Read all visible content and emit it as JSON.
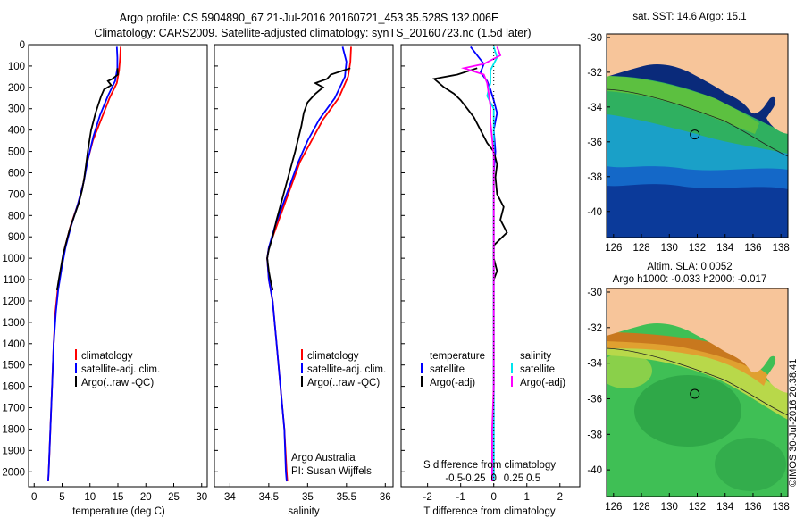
{
  "header": {
    "line1": "Argo profile: CS 5904890_67 21-Jul-2016 20160721_453 35.528S 132.006E",
    "line2": "Climatology: CARS2009. Satellite-adjusted climatology: synTS_20160723.nc (1.5d later)"
  },
  "colors": {
    "climatology": "#ff0000",
    "satellite": "#0000ff",
    "argo": "#000000",
    "satellite_s": "#00e5ee",
    "argo_s": "#ff00ff",
    "land": "#f7c59a"
  },
  "chart_data": [
    {
      "type": "line",
      "name": "temperature-profile",
      "xlabel": "temperature (deg C)",
      "ylabel": "",
      "xlim": [
        -1,
        31
      ],
      "ylim": [
        2070,
        0
      ],
      "xticks": [
        0,
        5,
        10,
        15,
        20,
        25,
        30
      ],
      "yticks": [
        0,
        100,
        200,
        300,
        400,
        500,
        600,
        700,
        800,
        900,
        1000,
        1100,
        1200,
        1300,
        1400,
        1500,
        1600,
        1700,
        1800,
        1900,
        2000
      ],
      "legend": [
        "climatology",
        "satellite-adj. clim.",
        "Argo(..raw -QC)"
      ],
      "series": [
        {
          "name": "climatology",
          "color": "#ff0000",
          "points": [
            [
              15.5,
              10
            ],
            [
              15.4,
              60
            ],
            [
              15.2,
              120
            ],
            [
              14.8,
              180
            ],
            [
              13.5,
              250
            ],
            [
              12.0,
              350
            ],
            [
              10.5,
              450
            ],
            [
              9.5,
              550
            ],
            [
              8.8,
              650
            ],
            [
              7.8,
              750
            ],
            [
              6.5,
              850
            ],
            [
              5.5,
              950
            ],
            [
              4.8,
              1050
            ],
            [
              4.2,
              1150
            ],
            [
              3.8,
              1250
            ],
            [
              3.5,
              1400
            ],
            [
              3.2,
              1600
            ],
            [
              2.9,
              1800
            ],
            [
              2.6,
              2000
            ],
            [
              2.5,
              2045
            ]
          ]
        },
        {
          "name": "satellite-adj. clim.",
          "color": "#0000ff",
          "points": [
            [
              14.8,
              10
            ],
            [
              14.9,
              60
            ],
            [
              14.9,
              110
            ],
            [
              14.5,
              170
            ],
            [
              13.2,
              240
            ],
            [
              11.8,
              330
            ],
            [
              10.6,
              430
            ],
            [
              9.6,
              540
            ],
            [
              8.9,
              640
            ],
            [
              7.9,
              740
            ],
            [
              6.6,
              850
            ],
            [
              5.6,
              950
            ],
            [
              4.9,
              1050
            ],
            [
              4.3,
              1150
            ],
            [
              3.9,
              1250
            ],
            [
              3.5,
              1400
            ],
            [
              3.2,
              1600
            ],
            [
              2.9,
              1800
            ],
            [
              2.6,
              2000
            ],
            [
              2.5,
              2045
            ]
          ]
        },
        {
          "name": "Argo(..raw -QC)",
          "color": "#000000",
          "points": [
            [
              14.9,
              110
            ],
            [
              15.0,
              140
            ],
            [
              14.0,
              160
            ],
            [
              13.2,
              170
            ],
            [
              13.8,
              190
            ],
            [
              12.5,
              210
            ],
            [
              12.0,
              240
            ],
            [
              11.5,
              280
            ],
            [
              11.0,
              320
            ],
            [
              10.6,
              360
            ],
            [
              10.2,
              400
            ],
            [
              9.9,
              450
            ],
            [
              9.6,
              500
            ],
            [
              9.3,
              560
            ],
            [
              9.0,
              620
            ],
            [
              8.6,
              680
            ],
            [
              8.0,
              740
            ],
            [
              7.2,
              800
            ],
            [
              6.4,
              860
            ],
            [
              5.8,
              920
            ],
            [
              5.2,
              980
            ],
            [
              4.8,
              1040
            ],
            [
              4.4,
              1100
            ],
            [
              4.1,
              1150
            ]
          ]
        }
      ]
    },
    {
      "type": "line",
      "name": "salinity-profile",
      "xlabel": "salinity",
      "xlim": [
        33.8,
        36.1
      ],
      "ylim": [
        2070,
        0
      ],
      "xticks": [
        34,
        34.5,
        35,
        35.5,
        36
      ],
      "legend": [
        "climatology",
        "satellite-adj. clim.",
        "Argo(..raw -QC)"
      ],
      "annotation": [
        "Argo Australia",
        "PI: Susan Wijffels"
      ],
      "series": [
        {
          "name": "climatology",
          "color": "#ff0000",
          "points": [
            [
              35.56,
              10
            ],
            [
              35.55,
              80
            ],
            [
              35.52,
              150
            ],
            [
              35.4,
              250
            ],
            [
              35.2,
              350
            ],
            [
              35.05,
              450
            ],
            [
              34.9,
              550
            ],
            [
              34.8,
              650
            ],
            [
              34.7,
              750
            ],
            [
              34.6,
              850
            ],
            [
              34.5,
              950
            ],
            [
              34.48,
              1000
            ],
            [
              34.5,
              1100
            ],
            [
              34.55,
              1200
            ],
            [
              34.6,
              1400
            ],
            [
              34.65,
              1600
            ],
            [
              34.7,
              1800
            ],
            [
              34.73,
              2000
            ],
            [
              34.74,
              2045
            ]
          ]
        },
        {
          "name": "satellite-adj. clim.",
          "color": "#0000ff",
          "points": [
            [
              35.45,
              10
            ],
            [
              35.5,
              80
            ],
            [
              35.48,
              150
            ],
            [
              35.35,
              250
            ],
            [
              35.15,
              350
            ],
            [
              35.0,
              450
            ],
            [
              34.88,
              550
            ],
            [
              34.78,
              650
            ],
            [
              34.68,
              750
            ],
            [
              34.58,
              850
            ],
            [
              34.5,
              950
            ],
            [
              34.48,
              1000
            ],
            [
              34.5,
              1100
            ],
            [
              34.55,
              1200
            ],
            [
              34.6,
              1400
            ],
            [
              34.65,
              1600
            ],
            [
              34.7,
              1800
            ],
            [
              34.72,
              2000
            ],
            [
              34.73,
              2045
            ]
          ]
        },
        {
          "name": "Argo(..raw -QC)",
          "color": "#000000",
          "points": [
            [
              35.55,
              110
            ],
            [
              35.3,
              140
            ],
            [
              35.25,
              160
            ],
            [
              35.1,
              180
            ],
            [
              35.2,
              200
            ],
            [
              35.1,
              230
            ],
            [
              35.0,
              270
            ],
            [
              34.95,
              320
            ],
            [
              34.92,
              380
            ],
            [
              34.88,
              440
            ],
            [
              34.84,
              500
            ],
            [
              34.78,
              580
            ],
            [
              34.72,
              660
            ],
            [
              34.66,
              740
            ],
            [
              34.6,
              820
            ],
            [
              34.55,
              900
            ],
            [
              34.5,
              960
            ],
            [
              34.48,
              1000
            ],
            [
              34.5,
              1060
            ],
            [
              34.52,
              1100
            ],
            [
              34.55,
              1150
            ]
          ]
        }
      ]
    },
    {
      "type": "line",
      "name": "difference-profile",
      "xlabel": "T difference from climatology",
      "xlabel_top": "S difference from climatology",
      "xlim": [
        -2.8,
        2.6
      ],
      "ylim": [
        2070,
        0
      ],
      "xticks": [
        -2,
        -1,
        0,
        1,
        2
      ],
      "xticks_top": [
        "-0.5",
        "-0.25",
        "0",
        "0.25",
        "0.5"
      ],
      "legend_t_title": "temperature",
      "legend_s_title": "salinity",
      "legend": [
        "satellite",
        "Argo(-adj)",
        "satellite",
        "Argo(-adj)"
      ],
      "series": [
        {
          "name": "T satellite",
          "color": "#0000ff",
          "points": [
            [
              -0.7,
              10
            ],
            [
              -0.5,
              50
            ],
            [
              -0.3,
              90
            ],
            [
              -0.4,
              130
            ],
            [
              -0.2,
              170
            ],
            [
              -0.1,
              210
            ],
            [
              0.0,
              260
            ],
            [
              0.1,
              320
            ],
            [
              0.0,
              400
            ],
            [
              0.05,
              500
            ],
            [
              0.0,
              600
            ],
            [
              0.0,
              700
            ],
            [
              0.0,
              800
            ],
            [
              0.0,
              900
            ],
            [
              0.0,
              1000
            ],
            [
              0.0,
              1200
            ],
            [
              0.0,
              1400
            ],
            [
              0.0,
              1600
            ],
            [
              0.0,
              1800
            ],
            [
              0.0,
              2045
            ]
          ]
        },
        {
          "name": "T Argo(-adj)",
          "color": "#000000",
          "points": [
            [
              -0.5,
              110
            ],
            [
              -1.1,
              140
            ],
            [
              -1.8,
              160
            ],
            [
              -1.5,
              200
            ],
            [
              -1.2,
              230
            ],
            [
              -1.0,
              260
            ],
            [
              -0.8,
              300
            ],
            [
              -0.6,
              340
            ],
            [
              -0.4,
              400
            ],
            [
              -0.2,
              460
            ],
            [
              0.0,
              500
            ],
            [
              0.1,
              560
            ],
            [
              0.05,
              620
            ],
            [
              0.1,
              700
            ],
            [
              0.3,
              760
            ],
            [
              0.2,
              820
            ],
            [
              0.4,
              880
            ],
            [
              0.0,
              940
            ],
            [
              0.0,
              1000
            ],
            [
              0.1,
              1060
            ],
            [
              0.0,
              1100
            ]
          ]
        },
        {
          "name": "S satellite",
          "color": "#00e5ee",
          "points": [
            [
              0.0,
              10
            ],
            [
              0.1,
              60
            ],
            [
              -0.1,
              120
            ],
            [
              -0.1,
              180
            ],
            [
              -0.2,
              240
            ],
            [
              0.0,
              300
            ],
            [
              0.0,
              400
            ],
            [
              0.0,
              500
            ],
            [
              0.0,
              600
            ],
            [
              0.0,
              800
            ],
            [
              0.0,
              1000
            ],
            [
              0.0,
              1200
            ],
            [
              0.0,
              1400
            ],
            [
              0.0,
              1600
            ],
            [
              0.0,
              1800
            ],
            [
              0.0,
              2045
            ]
          ]
        },
        {
          "name": "S Argo(-adj)",
          "color": "#ff00ff",
          "points": [
            [
              0.1,
              10
            ],
            [
              0.2,
              50
            ],
            [
              -0.3,
              90
            ],
            [
              -0.9,
              110
            ],
            [
              -0.3,
              140
            ],
            [
              -0.2,
              180
            ],
            [
              -0.15,
              230
            ],
            [
              -0.1,
              290
            ],
            [
              -0.1,
              360
            ],
            [
              -0.05,
              440
            ],
            [
              0.0,
              520
            ],
            [
              0.0,
              640
            ],
            [
              0.0,
              800
            ],
            [
              0.0,
              1000
            ],
            [
              0.0,
              1200
            ],
            [
              0.0,
              1400
            ],
            [
              0.0,
              1600
            ],
            [
              -0.05,
              1800
            ],
            [
              -0.05,
              2045
            ]
          ]
        }
      ]
    },
    {
      "type": "heatmap",
      "name": "sst-map",
      "title": "sat. SST: 14.6  Argo: 15.1",
      "xlim": [
        125.5,
        138.5
      ],
      "ylim": [
        -41.5,
        -29.8
      ],
      "xticks": [
        "126",
        "128",
        "130",
        "132",
        "134",
        "136",
        "138"
      ],
      "yticks": [
        "-30",
        "-32",
        "-34",
        "-36",
        "-38",
        "-40"
      ],
      "argo_position": [
        132.006,
        -35.528
      ]
    },
    {
      "type": "heatmap",
      "name": "sla-map",
      "title_line1": "Altim. SLA: 0.0052",
      "title_line2": "Argo h1000: -0.033 h2000: -0.017",
      "xlim": [
        125.5,
        138.5
      ],
      "ylim": [
        -41.5,
        -29.8
      ],
      "xticks": [
        "126",
        "128",
        "130",
        "132",
        "134",
        "136",
        "138"
      ],
      "yticks": [
        "-30",
        "-32",
        "-34",
        "-36",
        "-38",
        "-40"
      ],
      "argo_position": [
        132.006,
        -35.528
      ]
    }
  ],
  "footer": {
    "credit": "©IMOS 30-Jul-2016 20:38:41"
  }
}
